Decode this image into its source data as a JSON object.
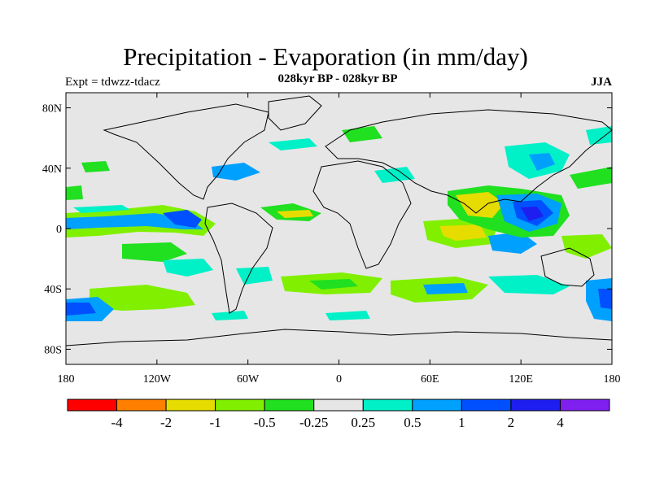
{
  "title": "Precipitation - Evaporation (in mm/day)",
  "subtitle": "028kyr BP - 028kyr BP",
  "left_label": "Expt = tdwzz-tdacz",
  "right_label": "JJA",
  "map": {
    "projection": "cylindrical equidistant",
    "background_color": "#e6e6e6",
    "lat_ticks": [
      "80N",
      "40N",
      "0",
      "40S",
      "80S"
    ],
    "lon_ticks": [
      "180",
      "120W",
      "60W",
      "0",
      "60E",
      "120E",
      "180"
    ]
  },
  "colorbar": {
    "colors": [
      "#ff0000",
      "#ff8000",
      "#e6dc00",
      "#80f000",
      "#20e020",
      "#e6e6e6",
      "#00f0c8",
      "#00a0ff",
      "#0050ff",
      "#1e1ef0",
      "#8020f0"
    ],
    "labels": [
      "-4",
      "-2",
      "-1",
      "-0.5",
      "-0.25",
      "0.25",
      "0.5",
      "1",
      "2",
      "4"
    ]
  }
}
